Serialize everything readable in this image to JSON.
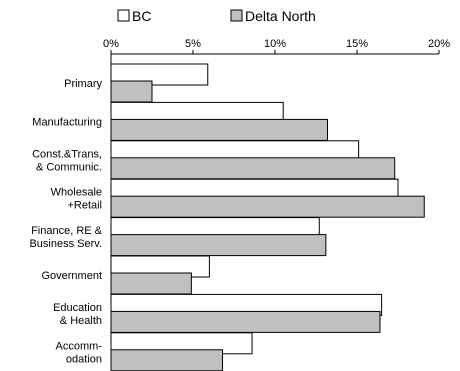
{
  "chart_data": {
    "type": "bar",
    "orientation": "horizontal",
    "legend_placement": "top",
    "categories": [
      [
        "Primary"
      ],
      [
        "Manufacturing"
      ],
      [
        "Const.&Trans,",
        "& Communic."
      ],
      [
        "Wholesale",
        "+Retail"
      ],
      [
        "Finance, RE &",
        "Business Serv."
      ],
      [
        "Government"
      ],
      [
        "Education",
        "& Health"
      ],
      [
        "Accomm-",
        "odation"
      ]
    ],
    "series": [
      {
        "name": "BC",
        "color": "#ffffff",
        "values": [
          5.9,
          10.5,
          15.1,
          17.5,
          12.7,
          6.0,
          16.5,
          8.6
        ]
      },
      {
        "name": "Delta North",
        "color": "#c0c0c0",
        "values": [
          2.5,
          13.2,
          17.3,
          19.1,
          13.1,
          4.9,
          16.4,
          6.8
        ]
      }
    ],
    "xlim": [
      0,
      20
    ],
    "xticks": [
      0,
      5,
      10,
      15,
      20
    ],
    "tick_suffix": "%",
    "grid": false
  }
}
